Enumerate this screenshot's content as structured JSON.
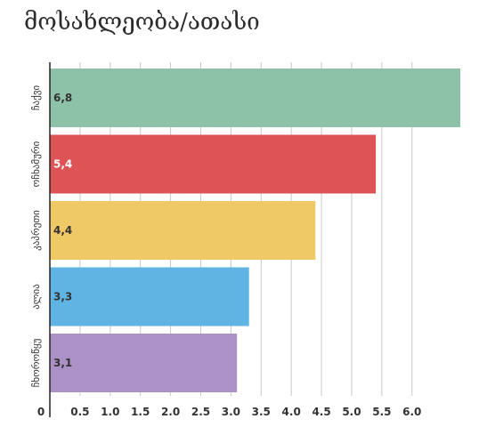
{
  "chart_data": {
    "type": "bar",
    "orientation": "horizontal",
    "title": "მოსახლეობა/ათასი",
    "categories": [
      "ჩაქვი",
      "ოჩხამური",
      "კაპრეთი",
      "ალია",
      "ჩხოროწყუ"
    ],
    "values": [
      6.8,
      5.4,
      4.4,
      3.3,
      3.1
    ],
    "value_labels": [
      "6,8",
      "5,4",
      "4,4",
      "3,3",
      "3,1"
    ],
    "colors": [
      "#8ec2a8",
      "#de5356",
      "#f0c967",
      "#5fb4e3",
      "#ab91c6"
    ],
    "label_colors": [
      "#333333",
      "#ffffff",
      "#333333",
      "#333333",
      "#333333"
    ],
    "xlim": [
      0,
      6.2
    ],
    "xticks": [
      0,
      0.5,
      1.0,
      1.5,
      2.0,
      2.5,
      3.0,
      3.5,
      4.0,
      4.5,
      5.0,
      5.5,
      6.0
    ],
    "xtick_labels": [
      "0",
      "0.5",
      "1.0",
      "1.5",
      "2.0",
      "2.5",
      "3.0",
      "3.5",
      "4.0",
      "4.5",
      "5.0",
      "5.5",
      "6.0"
    ],
    "grid": true,
    "legend": "none"
  }
}
